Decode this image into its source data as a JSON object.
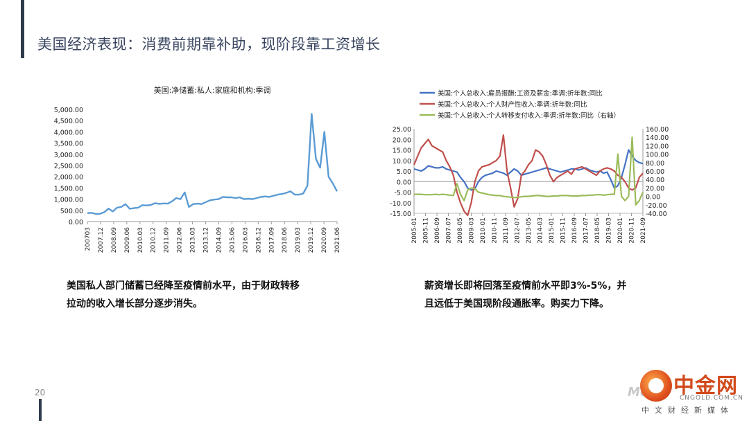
{
  "slide": {
    "title": "美国经济表现：消费前期靠补助，现阶段靠工资增长",
    "page_number": "20"
  },
  "captions": {
    "left": [
      "美国私人部门储蓄已经降至疫情前水平，由于财政转移",
      "拉动的收入增长部分逐步消失。"
    ],
    "right": [
      "薪资增长即将回落至疫情前水平即3%-5%，并",
      "且远低于美国现阶段通胀率。购买力下降。"
    ]
  },
  "watermark": {
    "brand": "中金网",
    "domain": "CNGOLD.COM.CN",
    "subtitle": "中文财经新媒体",
    "more": "More"
  },
  "chart_data": [
    {
      "type": "line",
      "title": "美国:净储蓄:私人:家庭和机构:季调",
      "x_ticks": [
        "200703",
        "2007.12",
        "2008.09",
        "2009.06",
        "2010.03",
        "2010.12",
        "2011.09",
        "2012.06",
        "2013.03",
        "2013.12",
        "2014.09",
        "2015.06",
        "2016.03",
        "2016.12",
        "2017.09",
        "2018.06",
        "2019.03",
        "2019.12",
        "2020.09",
        "2021.06"
      ],
      "y_ticks": [
        "0.00",
        "500.00",
        "1,000.00",
        "1,500.00",
        "2,000.00",
        "2,500.00",
        "3,000.00",
        "3,500.00",
        "4,000.00",
        "4,500.00",
        "5,000.00"
      ],
      "ylim": [
        0,
        5000
      ],
      "series": [
        {
          "color": "#5b9bd5",
          "values": [
            380,
            390,
            340,
            350,
            420,
            580,
            450,
            620,
            650,
            780,
            570,
            600,
            620,
            730,
            720,
            740,
            820,
            790,
            810,
            800,
            900,
            1050,
            1000,
            1300,
            650,
            780,
            800,
            780,
            870,
            950,
            980,
            1000,
            1100,
            1080,
            1080,
            1050,
            1080,
            1000,
            1020,
            1000,
            1050,
            1100,
            1120,
            1100,
            1150,
            1200,
            1230,
            1280,
            1350,
            1200,
            1200,
            1250,
            1600,
            4800,
            2800,
            2400,
            4000,
            2000,
            1700,
            1350
          ]
        }
      ]
    },
    {
      "type": "line",
      "title": "",
      "legend": [
        "美国:个人总收入:雇员报酬:工资及薪金:季调:折年数:同比",
        "美国:个人总收入:个人财产性收入:季调:折年数:同比",
        "美国:个人总收入:个人转移支付收入:季调:折年数:同比（右轴）"
      ],
      "x_ticks": [
        "2005-01",
        "2005-11",
        "2006-09",
        "2007-07",
        "2008-05",
        "2009-03",
        "2010-01",
        "2010-11",
        "2011-09",
        "2012-07",
        "2013-05",
        "2014-03",
        "2015-01",
        "2015-11",
        "2016-09",
        "2017-07",
        "2018-05",
        "2019-03",
        "2020-01",
        "2020-11",
        "2021-09"
      ],
      "y_left_ticks": [
        "25.00",
        "20.00",
        "15.00",
        "10.00",
        "5.00",
        "0.00",
        "-5.00",
        "-10.00",
        "-15.00"
      ],
      "y_right_ticks": [
        "160.00",
        "140.00",
        "120.00",
        "100.00",
        "80.00",
        "60.00",
        "40.00",
        "20.00",
        "0.00",
        "-20.00",
        "-40.00"
      ],
      "ylim_left": [
        -15,
        25
      ],
      "ylim_right": [
        -40,
        160
      ],
      "series": [
        {
          "axis": "left",
          "color": "#4472c4",
          "values": [
            6,
            5.5,
            5,
            6,
            7.5,
            7,
            6.5,
            6.5,
            7,
            6,
            5.5,
            5,
            4.5,
            2,
            0,
            -3,
            -4,
            -3.5,
            0,
            2,
            3,
            3.5,
            4,
            5,
            4.5,
            4,
            3,
            4.5,
            6,
            5,
            3,
            3.5,
            4,
            4.5,
            5,
            5.5,
            6,
            6.5,
            6,
            5.5,
            5,
            4.5,
            5,
            5.5,
            6,
            6,
            5.5,
            6,
            6.5,
            5.5,
            5,
            4.5,
            5,
            4,
            4.5,
            1,
            -3,
            -2,
            2,
            8,
            15,
            12,
            10,
            9,
            8.5
          ]
        },
        {
          "axis": "left",
          "color": "#c0504d",
          "values": [
            8,
            12,
            16,
            18,
            20,
            17,
            16,
            15,
            14,
            10,
            7,
            3,
            -5,
            -10,
            -14,
            -16,
            -10,
            0,
            5,
            7,
            7.5,
            8,
            9,
            10,
            12,
            22,
            5,
            -3,
            -12,
            -8,
            3,
            5,
            8,
            10,
            15,
            14,
            12,
            8,
            3,
            0,
            2,
            3,
            4,
            5,
            3.5,
            6,
            6.5,
            7,
            6,
            5,
            4,
            3,
            5,
            6,
            6.5,
            6,
            5,
            3,
            2,
            0,
            -3,
            -4,
            -3,
            2,
            4
          ]
        },
        {
          "axis": "right",
          "color": "#9bbb59",
          "values": [
            5,
            5,
            5,
            4,
            4,
            4,
            5,
            4,
            5,
            4,
            3,
            2,
            30,
            5,
            -10,
            15,
            20,
            18,
            10,
            8,
            6,
            4,
            3,
            2,
            2,
            0,
            -1,
            -2,
            -3,
            -2,
            -1,
            0,
            0,
            1,
            2,
            2,
            1,
            0,
            0,
            1,
            1,
            2,
            2,
            2,
            1,
            1,
            1,
            2,
            2,
            3,
            3,
            4,
            4,
            3,
            4,
            5,
            5,
            100,
            0,
            -10,
            0,
            140,
            -20,
            -10,
            10
          ]
        }
      ]
    }
  ]
}
